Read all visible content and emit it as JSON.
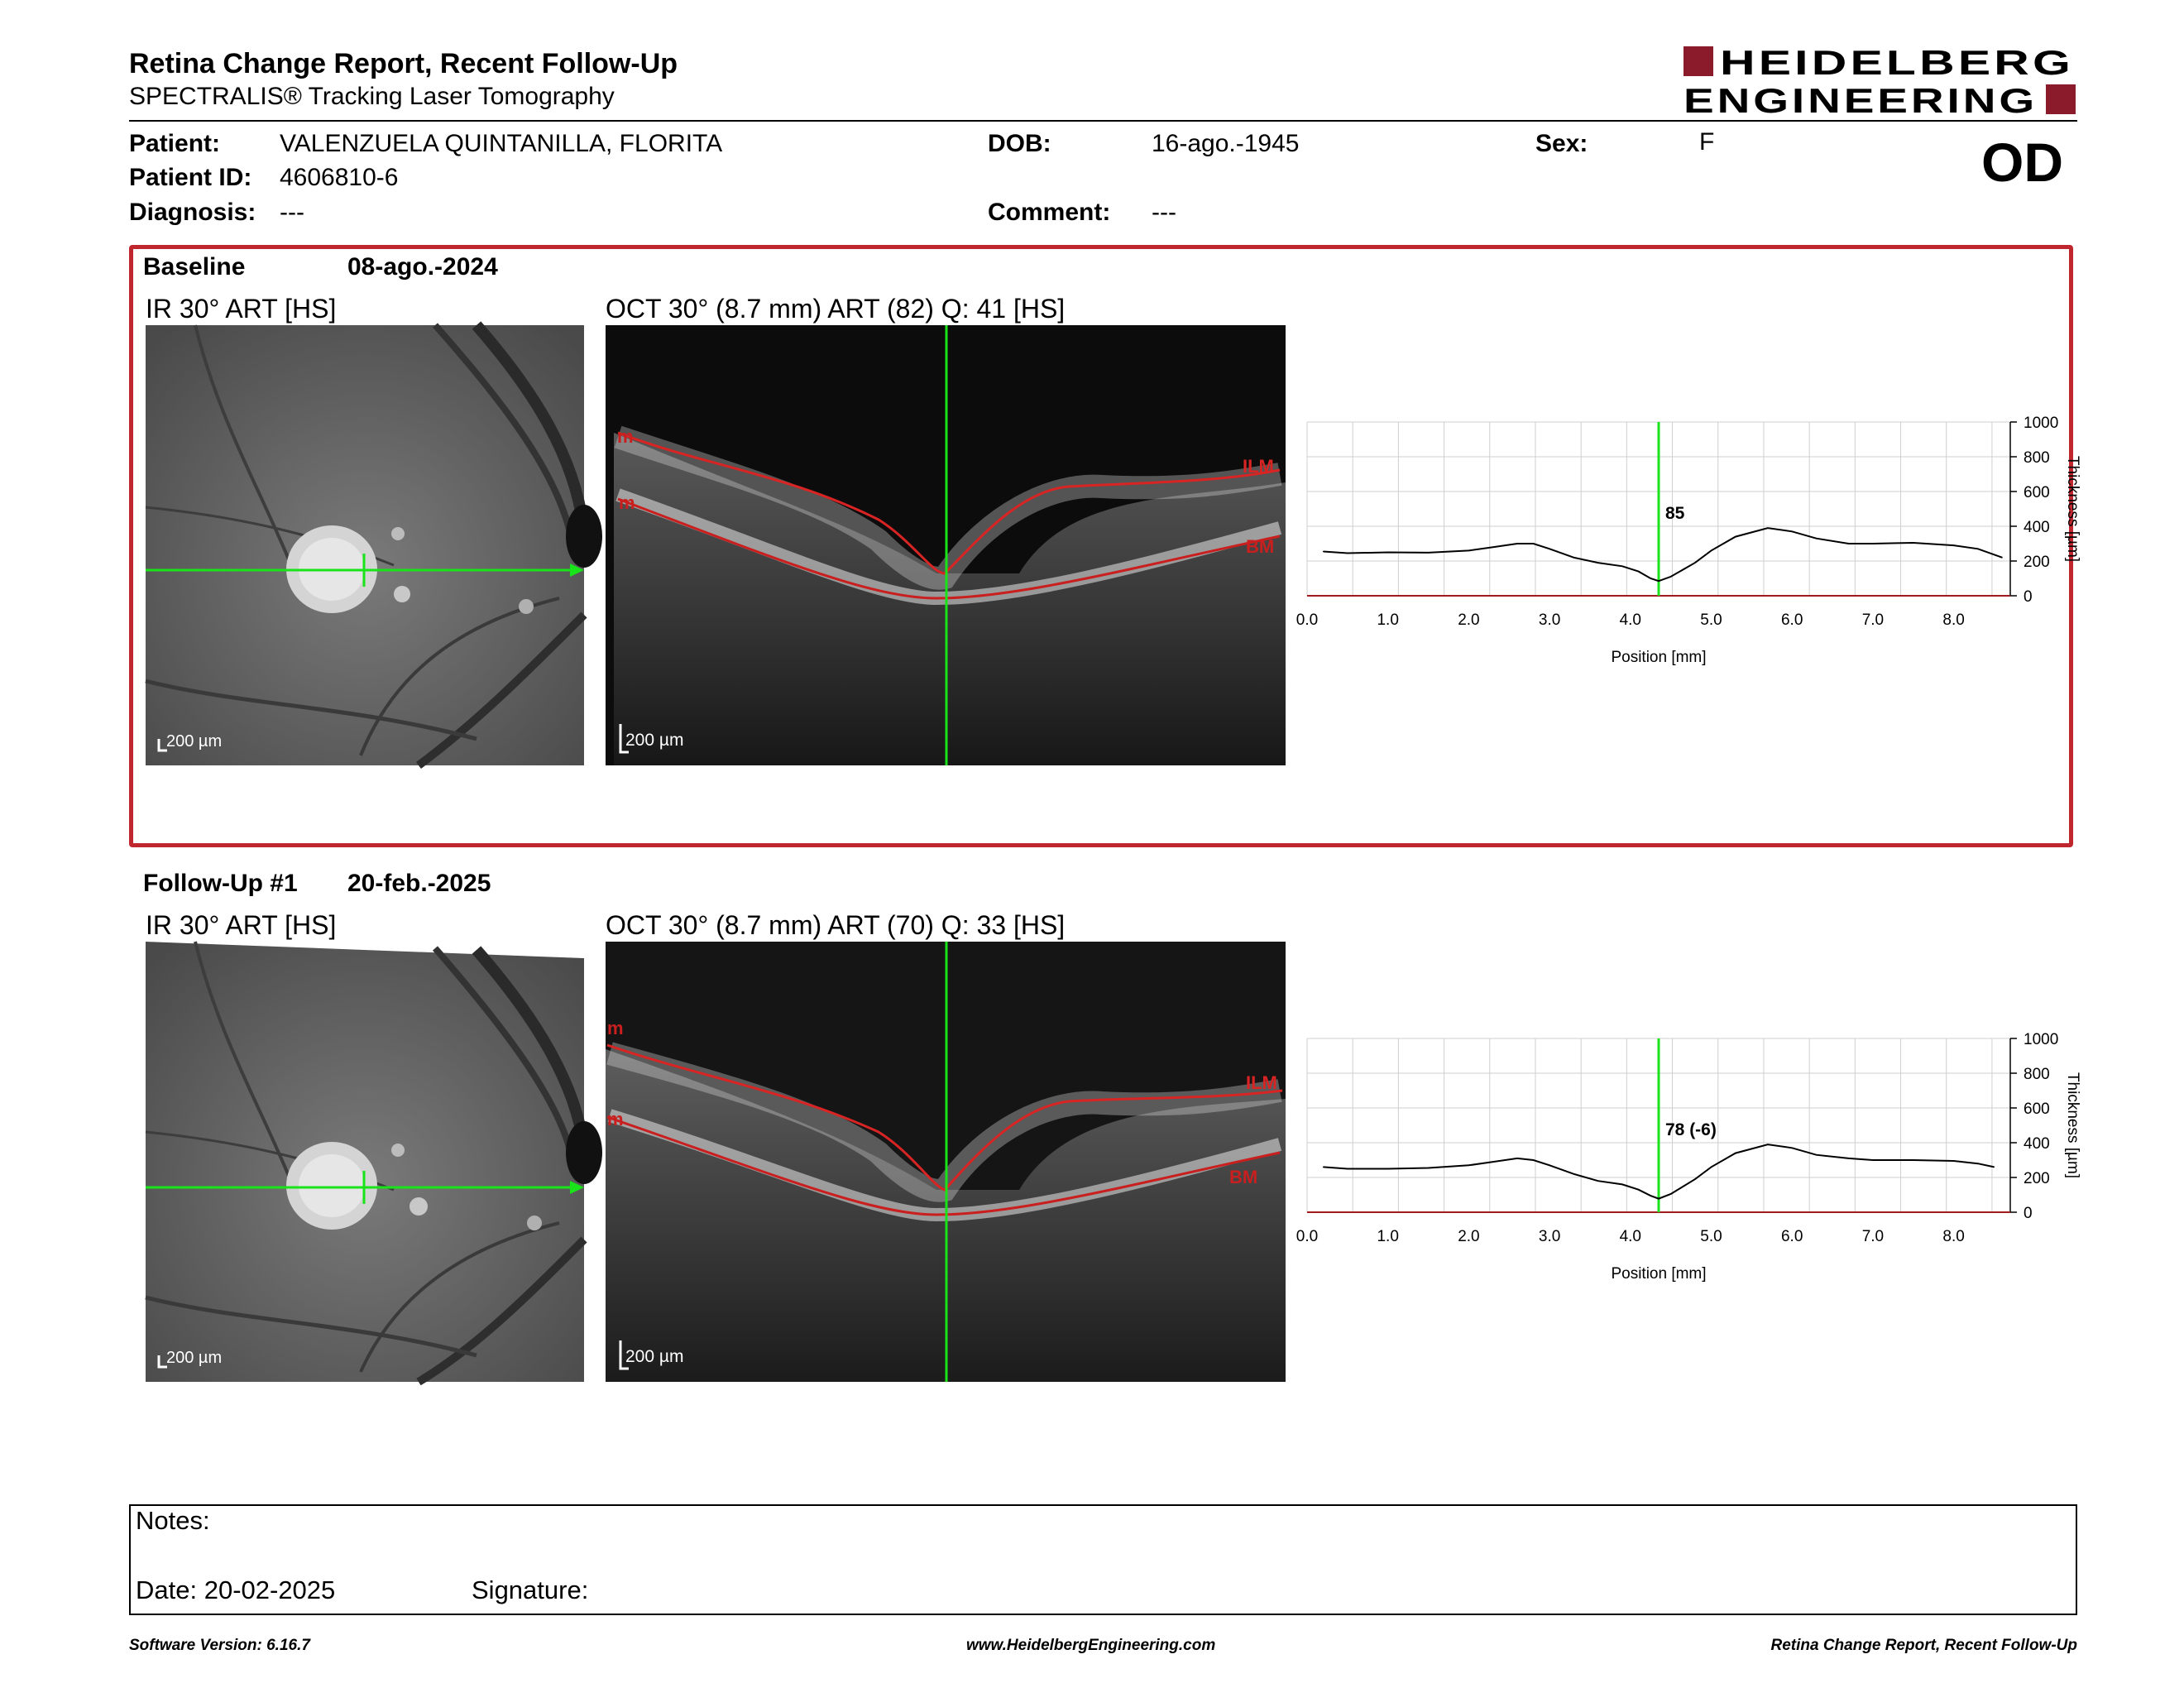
{
  "header": {
    "title": "Retina Change Report, Recent Follow-Up",
    "subtitle": "SPECTRALIS® Tracking Laser Tomography",
    "logo_text": [
      "HEIDELBERG",
      "ENGINEERING"
    ],
    "logo_color": "#8b1a2b"
  },
  "patient": {
    "patient_label": "Patient:",
    "patient_value": "VALENZUELA QUINTANILLA, FLORITA",
    "id_label": "Patient ID:",
    "id_value": "4606810-6",
    "diagnosis_label": "Diagnosis:",
    "diagnosis_value": "---",
    "dob_label": "DOB:",
    "dob_value": "16-ago.-1945",
    "comment_label": "Comment:",
    "comment_value": "---",
    "sex_label": "Sex:",
    "sex_value": "F",
    "eye": "OD"
  },
  "baseline": {
    "label": "Baseline",
    "date": "08-ago.-2024",
    "ir_title": "IR 30° ART [HS]",
    "oct_title": "OCT 30° (8.7 mm) ART (82) Q: 41 [HS]",
    "scale_ir": "200 µm",
    "scale_oct": "200 µm",
    "ilm": "ILM",
    "bm": "BM",
    "marker": "m",
    "thickness_label": "85"
  },
  "followup": {
    "label": "Follow-Up #1",
    "date": "20-feb.-2025",
    "ir_title": "IR 30° ART [HS]",
    "oct_title": "OCT 30° (8.7 mm) ART (70) Q: 33 [HS]",
    "scale_ir": "200 µm",
    "scale_oct": "200 µm",
    "ilm": "ILM",
    "bm": "BM",
    "marker": "m",
    "thickness_label": "78 (-6)"
  },
  "chart_data": [
    {
      "type": "line",
      "title": "",
      "xlabel": "Position [mm]",
      "ylabel": "Thickness [µm]",
      "xlim": [
        0,
        8.7
      ],
      "ylim": [
        0,
        1000
      ],
      "xticks": [
        "0.0",
        "1.0",
        "2.0",
        "3.0",
        "4.0",
        "5.0",
        "6.0",
        "7.0",
        "8.0"
      ],
      "yticks": [
        "0",
        "200",
        "400",
        "600",
        "800",
        "1000"
      ],
      "grid": true,
      "cursor_x": 4.35,
      "cursor_label": "85",
      "x": [
        0.2,
        0.5,
        1.0,
        1.5,
        2.0,
        2.3,
        2.6,
        2.8,
        3.0,
        3.3,
        3.6,
        3.9,
        4.1,
        4.25,
        4.35,
        4.5,
        4.8,
        5.0,
        5.3,
        5.7,
        6.0,
        6.3,
        6.7,
        7.0,
        7.5,
        8.0,
        8.3,
        8.6
      ],
      "series": [
        {
          "values": [
            255,
            245,
            250,
            248,
            260,
            280,
            300,
            300,
            270,
            220,
            190,
            170,
            140,
            100,
            85,
            110,
            190,
            260,
            340,
            390,
            370,
            330,
            300,
            300,
            305,
            290,
            270,
            220
          ]
        }
      ]
    },
    {
      "type": "line",
      "title": "",
      "xlabel": "Position [mm]",
      "ylabel": "Thickness [µm]",
      "xlim": [
        0,
        8.7
      ],
      "ylim": [
        0,
        1000
      ],
      "xticks": [
        "0.0",
        "1.0",
        "2.0",
        "3.0",
        "4.0",
        "5.0",
        "6.0",
        "7.0",
        "8.0"
      ],
      "yticks": [
        "0",
        "200",
        "400",
        "600",
        "800",
        "1000"
      ],
      "grid": true,
      "cursor_x": 4.35,
      "cursor_label": "78 (-6)",
      "x": [
        0.2,
        0.5,
        1.0,
        1.5,
        2.0,
        2.3,
        2.6,
        2.8,
        3.0,
        3.3,
        3.6,
        3.9,
        4.1,
        4.25,
        4.35,
        4.5,
        4.8,
        5.0,
        5.3,
        5.7,
        6.0,
        6.3,
        6.7,
        7.0,
        7.5,
        8.0,
        8.3,
        8.5
      ],
      "series": [
        {
          "values": [
            260,
            250,
            250,
            255,
            270,
            290,
            310,
            300,
            270,
            220,
            180,
            160,
            130,
            95,
            78,
            105,
            190,
            260,
            340,
            390,
            370,
            330,
            310,
            300,
            300,
            295,
            280,
            260
          ]
        }
      ]
    }
  ],
  "notes": {
    "notes_label": "Notes:",
    "date_label": "Date: 20-02-2025",
    "signature_label": "Signature:"
  },
  "footer": {
    "software": "Software Version: 6.16.7",
    "website": "www.HeidelbergEngineering.com",
    "report": "Retina Change Report, Recent Follow-Up"
  }
}
